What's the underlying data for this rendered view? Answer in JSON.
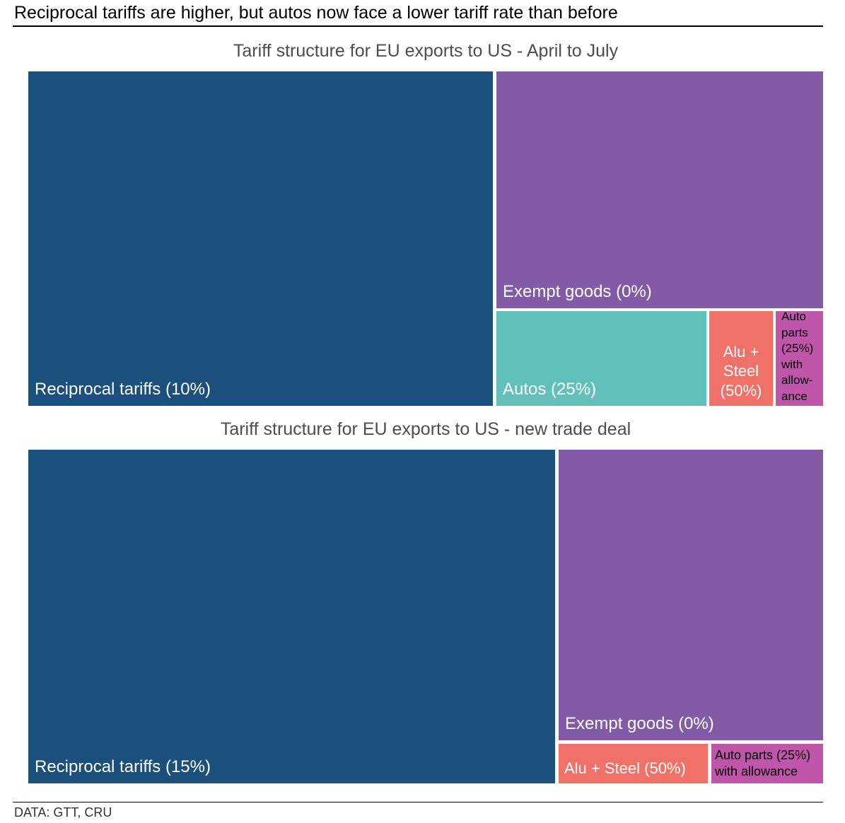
{
  "headline": "Reciprocal tariffs are higher, but autos now face a lower tariff rate than before",
  "source": "DATA: GTT, CRU",
  "chart_data": [
    {
      "type": "treemap",
      "title": "Tariff structure for EU exports to US - April to July",
      "tiles": [
        {
          "name": "Reciprocal tariffs (10%)",
          "label": "Reciprocal tariffs (10%)",
          "color": "#1b507c",
          "approx_share": 0.586
        },
        {
          "name": "Exempt goods (0%)",
          "label": "Exempt goods (0%)",
          "color": "#835aa6",
          "approx_share": 0.291
        },
        {
          "name": "Autos (25%)",
          "label": "Autos (25%)",
          "color": "#62c0bb",
          "approx_share": 0.07
        },
        {
          "name": "Alu + Steel (50%)",
          "label": "Alu +\nSteel\n(50%)",
          "color": "#f07168",
          "approx_share": 0.022
        },
        {
          "name": "Auto parts (25%) with allowance",
          "label": "Auto\nparts\n(25%)\nwith\nallow-\nance",
          "color": "#bf56aa",
          "approx_share": 0.017
        }
      ]
    },
    {
      "type": "treemap",
      "title": "Tariff structure for EU exports to US - new trade deal",
      "tiles": [
        {
          "name": "Reciprocal tariffs (15%)",
          "label": "Reciprocal tariffs (15%)",
          "color": "#1b507c",
          "approx_share": 0.663
        },
        {
          "name": "Exempt goods (0%)",
          "label": "Exempt goods (0%)",
          "color": "#835aa6",
          "approx_share": 0.281
        },
        {
          "name": "Alu + Steel (50%)",
          "label": "Alu + Steel (50%)",
          "color": "#f07168",
          "approx_share": 0.031
        },
        {
          "name": "Auto parts (25%) with allowance",
          "label": "Auto parts (25%)\nwith allowance",
          "color": "#bf56aa",
          "approx_share": 0.025
        }
      ]
    }
  ]
}
